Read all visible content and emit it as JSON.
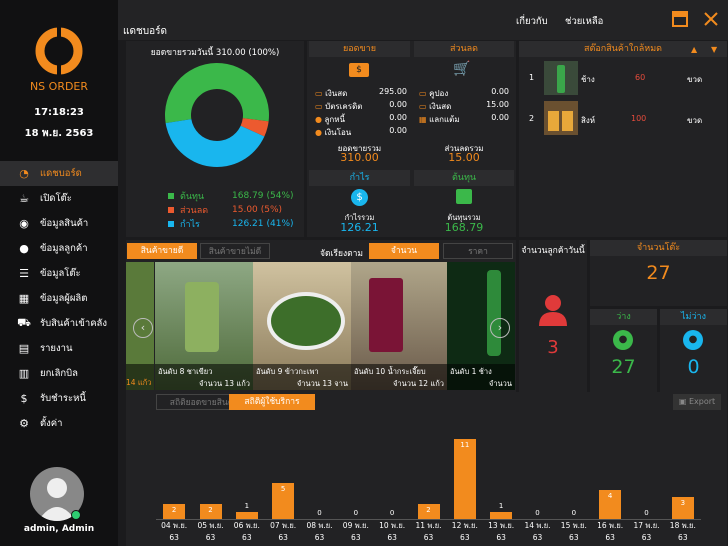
{
  "sidebar": {
    "brand": "NS ORDER",
    "time": "17:18:23",
    "date": "18 พ.ย. 2563",
    "items": [
      {
        "label": "แดชบอร์ด",
        "icon": "pie-chart-icon"
      },
      {
        "label": "เปิดโต๊ะ",
        "icon": "coffee-cup-icon"
      },
      {
        "label": "ข้อมูลสินค้า",
        "icon": "food-plate-icon"
      },
      {
        "label": "ข้อมูลลูกค้า",
        "icon": "user-icon"
      },
      {
        "label": "ข้อมูลโต๊ะ",
        "icon": "list-icon"
      },
      {
        "label": "ข้อมูลผู้ผลิต",
        "icon": "factory-icon"
      },
      {
        "label": "รับสินค้าเข้าคลัง",
        "icon": "cart-icon"
      },
      {
        "label": "รายงาน",
        "icon": "report-icon"
      },
      {
        "label": "ยกเลิกบิล",
        "icon": "receipt-icon"
      },
      {
        "label": "รับชำระหนี้",
        "icon": "dollar-icon"
      },
      {
        "label": "ตั้งค่า",
        "icon": "gear-icon"
      }
    ],
    "user": "admin, Admin"
  },
  "header": {
    "title": "แดชบอร์ด",
    "about": "เกี่ยวกับ",
    "help": "ช่วยเหลือ"
  },
  "today_sales": {
    "title": "ยอดขายรวมวันนี้ 310.00 (100%)",
    "legend": [
      {
        "name": "ต้นทุน",
        "value": "168.79",
        "pct": "(54%)",
        "color": "#3bb84a"
      },
      {
        "name": "ส่วนลด",
        "value": "15.00",
        "pct": "(5%)",
        "color": "#ec5a2f"
      },
      {
        "name": "กำไร",
        "value": "126.21",
        "pct": "(41%)",
        "color": "#19b6ee"
      }
    ]
  },
  "chart_data": [
    {
      "type": "pie",
      "title": "ยอดขายรวมวันนี้ 310.00 (100%)",
      "categories": [
        "ต้นทุน",
        "ส่วนลด",
        "กำไร"
      ],
      "values": [
        168.79,
        15.0,
        126.21
      ]
    },
    {
      "type": "bar",
      "categories": [
        "04 พ.ย. 63",
        "05 พ.ย. 63",
        "06 พ.ย. 63",
        "07 พ.ย. 63",
        "08 พ.ย. 63",
        "09 พ.ย. 63",
        "10 พ.ย. 63",
        "11 พ.ย. 63",
        "12 พ.ย. 63",
        "13 พ.ย. 63",
        "14 พ.ย. 63",
        "15 พ.ย. 63",
        "16 พ.ย. 63",
        "17 พ.ย. 63",
        "18 พ.ย. 63"
      ],
      "values": [
        2,
        2,
        1,
        5,
        0,
        0,
        0,
        2,
        11,
        1,
        0,
        0,
        4,
        0,
        3
      ],
      "ylim": [
        0,
        11
      ]
    }
  ],
  "sales": {
    "header": "ยอดขาย",
    "cash_label": "เงินสด",
    "cash": "295.00",
    "credit_label": "บัตรเครดิต",
    "credit": "0.00",
    "debtor_label": "ลูกหนี้",
    "debtor": "0.00",
    "transfer_label": "เงินโอน",
    "transfer": "0.00",
    "total_label": "ยอดขายรวม",
    "total": "310.00"
  },
  "discount": {
    "header": "ส่วนลด",
    "coupon_label": "คูปอง",
    "coupon": "0.00",
    "cash_label": "เงินสด",
    "cash": "15.00",
    "points_label": "แลกแต้ม",
    "points": "0.00",
    "total_label": "ส่วนลดรวม",
    "total": "15.00"
  },
  "profit": {
    "header": "กำไร",
    "label": "กำไรรวม",
    "value": "126.21"
  },
  "cost": {
    "header": "ต้นทุน",
    "label": "ต้นทุนรวม",
    "value": "168.79"
  },
  "stock": {
    "header": "สต๊อกสินค้าใกล้หมด",
    "rows": [
      {
        "no": "1",
        "name": "ช้าง",
        "qty": "60",
        "unit": "ขวด"
      },
      {
        "no": "2",
        "name": "สิงห์",
        "qty": "100",
        "unit": "ขวด"
      }
    ]
  },
  "products": {
    "tab_best": "สินค้าขายดี",
    "tab_worst": "สินค้าขายไม่ดี",
    "sort_label": "จัดเรียงตาม",
    "sort_qty": "จำนวน",
    "sort_price": "ราคา",
    "items": [
      {
        "rank": "อันดับ 8 ชาเขียว",
        "qty": "จำนวน 13 แก้ว",
        "partial": "14 แก้ว"
      },
      {
        "rank": "อันดับ 9 ข้าวกะเพา",
        "qty": "จำนวน 13 จาน"
      },
      {
        "rank": "อันดับ 10 น้ำกระเจี๊ยบ",
        "qty": "จำนวน 12 แก้ว"
      },
      {
        "rank": "อันดับ 1 ช้าง",
        "qty": "จำนวน"
      }
    ]
  },
  "customers": {
    "title": "จำนวนลูกค้าวันนี้",
    "value": "3"
  },
  "tables": {
    "title": "จำนวนโต๊ะ",
    "value": "27",
    "free_label": "ว่าง",
    "free": "27",
    "busy_label": "ไม่ว่าง",
    "busy": "0"
  },
  "stats": {
    "tab1": "สถิติยอดขายสินค้า",
    "tab2": "สถิติผู้ใช้บริการ",
    "export": "Export"
  }
}
